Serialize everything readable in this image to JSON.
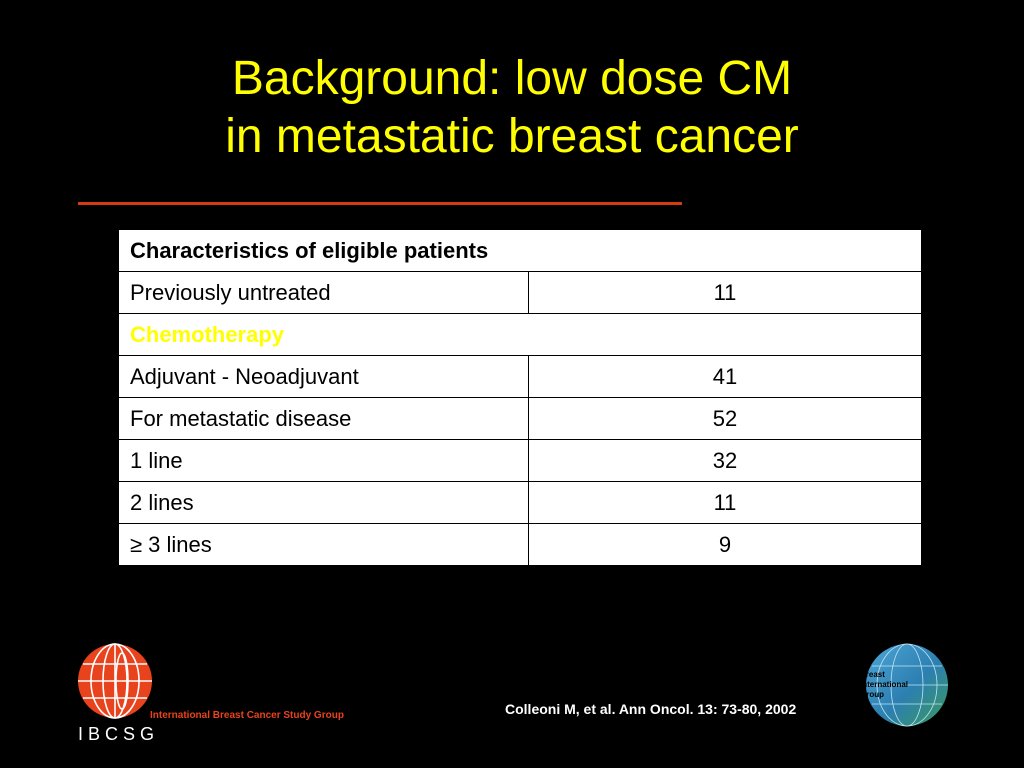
{
  "slide": {
    "title_line1": "Background: low dose CM",
    "title_line2": "in metastatic breast cancer",
    "accent_color": "#ffff00",
    "rule_color": "#d23c0f"
  },
  "table": {
    "header": "Characteristics of eligible patients",
    "rows": [
      {
        "label": "Previously untreated",
        "value": "11"
      },
      {
        "section": "Chemotherapy"
      },
      {
        "label": "Adjuvant - Neoadjuvant",
        "value": "41"
      },
      {
        "label": "For metastatic disease",
        "value": "52"
      },
      {
        "label": "1 line",
        "value": "32"
      },
      {
        "label": "2 lines",
        "value": "11"
      },
      {
        "label": "≥ 3 lines",
        "value": "9"
      }
    ]
  },
  "footer": {
    "ibcsg_org_name": "International Breast Cancer Study Group",
    "ibcsg_acronym": "IBCSG",
    "citation": "Colleoni M, et al. Ann Oncol. 13: 73-80, 2002",
    "big_line1": "Breast",
    "big_line2": "International",
    "big_line3": "Group"
  }
}
